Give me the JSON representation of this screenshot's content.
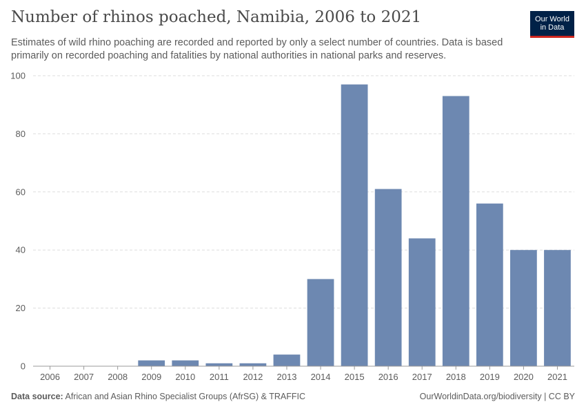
{
  "header": {
    "title": "Number of rhinos poached, Namibia, 2006 to 2021",
    "subtitle": "Estimates of wild rhino poaching are recorded and reported by only a select number of countries. Data is based primarily on recorded poaching and fatalities by national authorities in national parks and reserves.",
    "logo_line1": "Our World",
    "logo_line2": "in Data"
  },
  "footer": {
    "source_label": "Data source:",
    "source_text": "African and Asian Rhino Specialist Groups (AfrSG) & TRAFFIC",
    "link_text": "OurWorldinData.org/biodiversity",
    "license": " | CC BY"
  },
  "colors": {
    "bar": "#6d88b1",
    "grid": "#dddddd",
    "axis": "#999999",
    "logo_bg": "#002147",
    "logo_accent": "#ce261e"
  },
  "chart_data": {
    "type": "bar",
    "title": "Number of rhinos poached, Namibia, 2006 to 2021",
    "xlabel": "",
    "ylabel": "",
    "categories": [
      "2006",
      "2007",
      "2008",
      "2009",
      "2010",
      "2011",
      "2012",
      "2013",
      "2014",
      "2015",
      "2016",
      "2017",
      "2018",
      "2019",
      "2020",
      "2021"
    ],
    "values": [
      0,
      0,
      0,
      2,
      2,
      1,
      1,
      4,
      30,
      97,
      61,
      44,
      93,
      56,
      40,
      40
    ],
    "ylim": [
      0,
      100
    ],
    "yticks": [
      0,
      20,
      40,
      60,
      80,
      100
    ],
    "grid": true,
    "grid_style": "dashed-horizontal",
    "legend": "none"
  }
}
